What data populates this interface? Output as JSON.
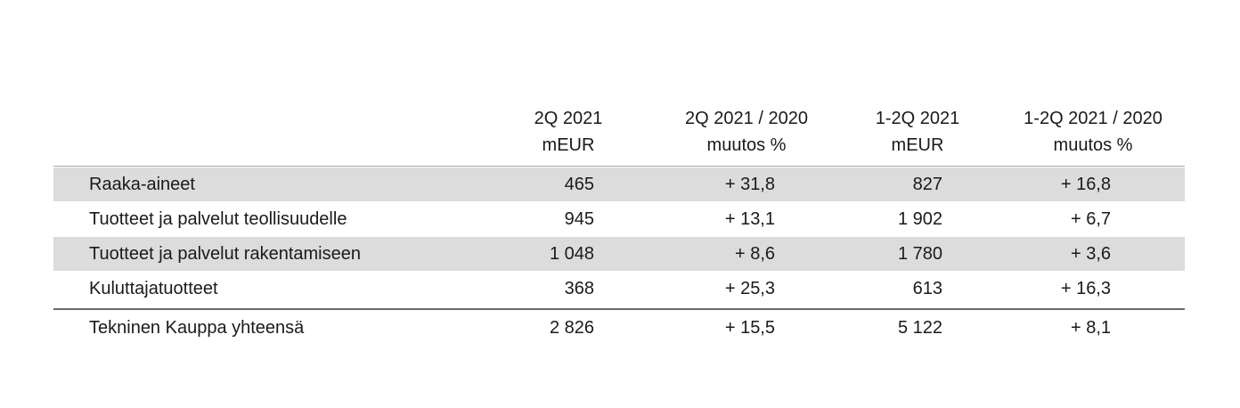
{
  "table": {
    "columns": [
      [
        "2Q 2021",
        "mEUR"
      ],
      [
        "2Q 2021 / 2020",
        "muutos %"
      ],
      [
        "1-2Q 2021",
        "mEUR"
      ],
      [
        "1-2Q 2021 / 2020",
        "muutos %"
      ]
    ],
    "rows": [
      [
        "Raaka-aineet",
        "465",
        "+ 31,8",
        "827",
        "+ 16,8"
      ],
      [
        "Tuotteet ja palvelut teollisuudelle",
        "945",
        "+ 13,1",
        "1 902",
        "+ 6,7"
      ],
      [
        "Tuotteet ja palvelut rakentamiseen",
        "1 048",
        "+ 8,6",
        "1 780",
        "+ 3,6"
      ],
      [
        "Kuluttajatuotteet",
        "368",
        "+ 25,3",
        "613",
        "+ 16,3"
      ]
    ],
    "total": [
      "Tekninen Kauppa yhteensä",
      "2 826",
      "+ 15,5",
      "5 122",
      "+ 8,1"
    ]
  }
}
